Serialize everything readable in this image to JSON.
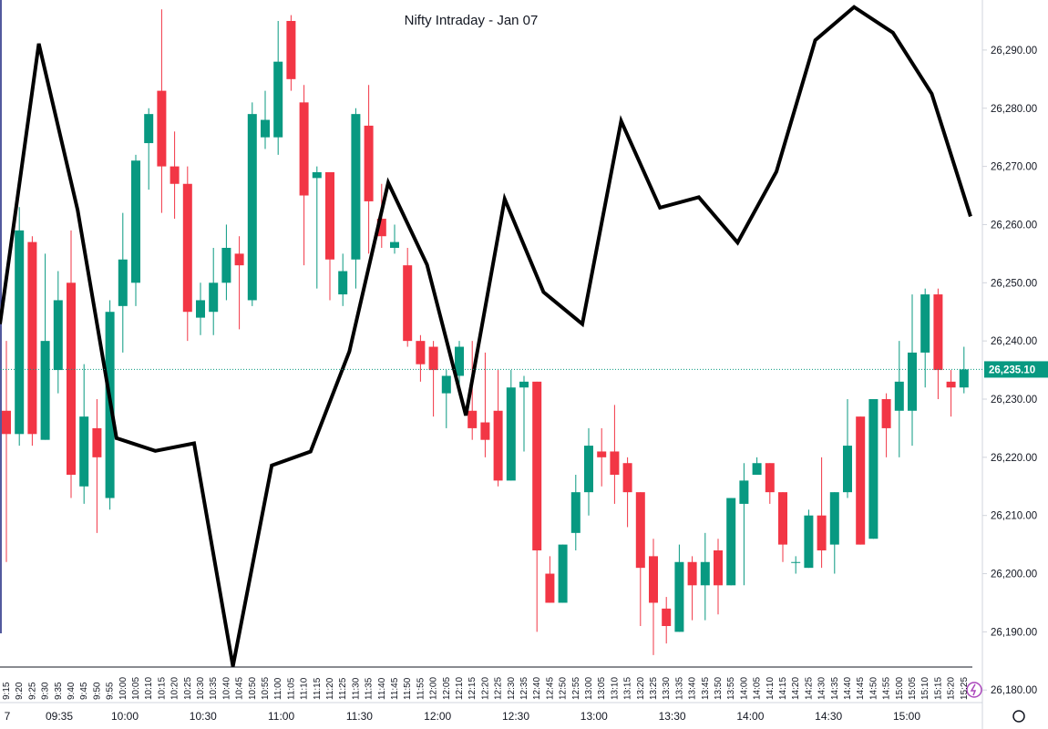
{
  "chart_data": {
    "type": "candlestick",
    "title": "Nifty Intraday - Jan 07",
    "categories": [
      "9:15",
      "9:20",
      "9:25",
      "9:30",
      "9:35",
      "9:40",
      "9:45",
      "9:50",
      "9:55",
      "10:00",
      "10:05",
      "10:10",
      "10:15",
      "10:20",
      "10:25",
      "10:30",
      "10:35",
      "10:40",
      "10:45",
      "10:50",
      "10:55",
      "11:00",
      "11:05",
      "11:10",
      "11:15",
      "11:20",
      "11:25",
      "11:30",
      "11:35",
      "11:40",
      "11:45",
      "11:50",
      "11:55",
      "12:00",
      "12:05",
      "12:10",
      "12:15",
      "12:20",
      "12:25",
      "12:30",
      "12:35",
      "12:40",
      "12:45",
      "12:50",
      "12:55",
      "13:00",
      "13:05",
      "13:10",
      "13:15",
      "13:20",
      "13:25",
      "13:30",
      "13:35",
      "13:40",
      "13:45",
      "13:50",
      "13:55",
      "14:00",
      "14:05",
      "14:10",
      "14:15",
      "14:20",
      "14:25",
      "14:30",
      "14:35",
      "14:40",
      "14:45",
      "14:50",
      "14:55",
      "15:00",
      "15:05",
      "15:10",
      "15:15",
      "15:20",
      "15:25"
    ],
    "time_axis_labels": [
      "7",
      "09:35",
      "10:00",
      "10:30",
      "11:00",
      "11:30",
      "12:00",
      "12:30",
      "13:00",
      "13:30",
      "14:00",
      "14:30",
      "15:00"
    ],
    "candles": {
      "up_color": "#089981",
      "down_color": "#f23645",
      "open": [
        26228,
        26224,
        26257,
        26223,
        26235,
        26250,
        26215,
        26225,
        26213,
        26246,
        26250,
        26274,
        26283,
        26270,
        26267,
        26244,
        26245,
        26250,
        26255,
        26247,
        26275,
        26275,
        26295,
        26281,
        26268,
        26269,
        26248,
        26254,
        26277,
        26261,
        26256,
        26253,
        26240,
        26239,
        26231,
        26234,
        26228,
        26226,
        26228,
        26216,
        26232,
        26233,
        26200,
        26195,
        26207,
        26214,
        26221,
        26221,
        26219,
        26214,
        26203,
        26194,
        26190,
        26202,
        26198,
        26204,
        26198,
        26212,
        26217,
        26219,
        26214,
        26202,
        26201,
        26210,
        26205,
        26214,
        26227,
        26206,
        26230,
        26228,
        26228,
        26238,
        26248,
        26233,
        26232
      ],
      "high": [
        26240,
        26263,
        26258,
        26255,
        26252,
        26259,
        26236,
        26230,
        26247,
        26262,
        26272,
        26280,
        26297,
        26276,
        26270,
        26250,
        26256,
        26260,
        26258,
        26281,
        26283,
        26295,
        26296,
        26284,
        26270,
        26269,
        26255,
        26280,
        26284,
        26267,
        26260,
        26256,
        26241,
        26240,
        26235,
        26240,
        26240,
        26238,
        26235,
        26235,
        26234,
        26233,
        26203,
        26205,
        26217,
        26225,
        26225,
        26229,
        26220,
        26214,
        26206,
        26196,
        26205,
        26203,
        26207,
        26206,
        26213,
        26219,
        26220,
        26219,
        26214,
        26203,
        26211,
        26220,
        26214,
        26230,
        26227,
        26230,
        26231,
        26240,
        26248,
        26249,
        26249,
        26235,
        26239
      ],
      "low": [
        26202,
        26222,
        26222,
        26223,
        26231,
        26213,
        26212,
        26207,
        26211,
        26238,
        26246,
        26266,
        26262,
        26261,
        26240,
        26241,
        26241,
        26247,
        26242,
        26246,
        26273,
        26272,
        26283,
        26253,
        26249,
        26247,
        26246,
        26249,
        26255,
        26256,
        26255,
        26239,
        26233,
        26227,
        26225,
        26231,
        26223,
        26220,
        26215,
        26216,
        26221,
        26190,
        26195,
        26195,
        26204,
        26210,
        26215,
        26212,
        26208,
        26191,
        26186,
        26188,
        26190,
        26192,
        26192,
        26193,
        26198,
        26198,
        26217,
        26212,
        26202,
        26200,
        26201,
        26201,
        26200,
        26213,
        26205,
        26206,
        26220,
        26220,
        26222,
        26232,
        26230,
        26227,
        26231
      ],
      "close": [
        26224,
        26259,
        26224,
        26240,
        26247,
        26217,
        26227,
        26220,
        26245,
        26254,
        26271,
        26279,
        26270,
        26267,
        26245,
        26247,
        26250,
        26256,
        26253,
        26279,
        26278,
        26288,
        26285,
        26265,
        26269,
        26254,
        26252,
        26279,
        26264,
        26258,
        26257,
        26240,
        26236,
        26235,
        26234,
        26239,
        26225,
        26223,
        26216,
        26232,
        26233,
        26204,
        26195,
        26205,
        26214,
        26222,
        26220,
        26217,
        26214,
        26201,
        26195,
        26191,
        26202,
        26198,
        26202,
        26198,
        26213,
        26216,
        26219,
        26214,
        26205,
        26202,
        26210,
        26204,
        26214,
        26222,
        26205,
        26230,
        26225,
        26233,
        26238,
        26248,
        26235,
        26232,
        26235.1
      ]
    },
    "overlay_line": {
      "color": "#000000",
      "values": [
        26242.9,
        26291.1,
        26262.5,
        26223.3,
        26221.1,
        26222.4,
        26184.1,
        26218.6,
        26221.0,
        26238.2,
        26267.2,
        26253.1,
        26227.2,
        26264.4,
        26248.4,
        26242.9,
        26277.8,
        26262.9,
        26264.7,
        26256.9,
        26269.1,
        26291.7,
        26297.4,
        26293.0,
        26282.5,
        26261.4
      ]
    },
    "last_price": {
      "value": 26235.1,
      "label": "26,235.10",
      "color": "#089981"
    },
    "ylim": [
      26178,
      26298.6
    ],
    "yticks": [
      {
        "value": 26180,
        "label": "26,180.00"
      },
      {
        "value": 26190,
        "label": "26,190.00"
      },
      {
        "value": 26200,
        "label": "26,200.00"
      },
      {
        "value": 26210,
        "label": "26,210.00"
      },
      {
        "value": 26220,
        "label": "26,220.00"
      },
      {
        "value": 26230,
        "label": "26,230.00"
      },
      {
        "value": 26240,
        "label": "26,240.00"
      },
      {
        "value": 26250,
        "label": "26,250.00"
      },
      {
        "value": 26260,
        "label": "26,260.00"
      },
      {
        "value": 26270,
        "label": "26,270.00"
      },
      {
        "value": 26280,
        "label": "26,280.00"
      },
      {
        "value": 26290,
        "label": "26,290.00"
      }
    ]
  }
}
